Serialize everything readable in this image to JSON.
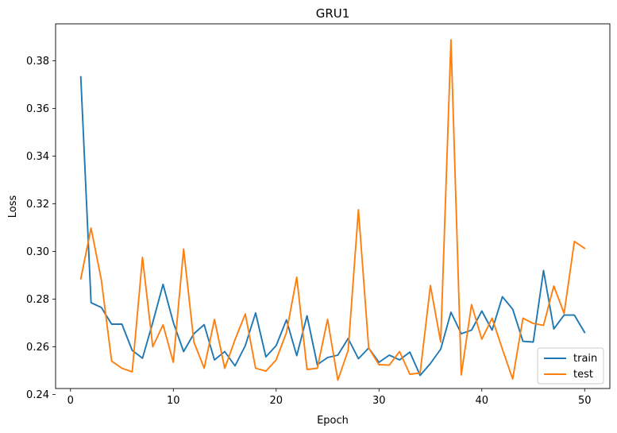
{
  "chart_data": {
    "type": "line",
    "title": "GRU1",
    "xlabel": "Epoch",
    "ylabel": "Loss",
    "xlim": [
      -1.45,
      52.45
    ],
    "ylim": [
      0.2425,
      0.3955
    ],
    "xticks": [
      0,
      10,
      20,
      30,
      40,
      50
    ],
    "yticks": [
      0.24,
      0.26,
      0.28,
      0.3,
      0.32,
      0.34,
      0.36,
      0.38
    ],
    "ytick_labels": [
      "0.24",
      "0.26",
      "0.28",
      "0.30",
      "0.32",
      "0.34",
      "0.36",
      "0.38"
    ],
    "grid": false,
    "legend_position": "lower-right",
    "x": [
      1,
      2,
      3,
      4,
      5,
      6,
      7,
      8,
      9,
      10,
      11,
      12,
      13,
      14,
      15,
      16,
      17,
      18,
      19,
      20,
      21,
      22,
      23,
      24,
      25,
      26,
      27,
      28,
      29,
      30,
      31,
      32,
      33,
      34,
      35,
      36,
      37,
      38,
      39,
      40,
      41,
      42,
      43,
      44,
      45,
      46,
      47,
      48,
      49,
      50
    ],
    "series": [
      {
        "name": "train",
        "color": "#1f77b4",
        "values": [
          0.3733,
          0.2785,
          0.2765,
          0.2695,
          0.2695,
          0.2585,
          0.2552,
          0.2702,
          0.2862,
          0.2702,
          0.258,
          0.2655,
          0.2693,
          0.2545,
          0.258,
          0.252,
          0.2605,
          0.2742,
          0.2558,
          0.2605,
          0.2713,
          0.2563,
          0.273,
          0.2525,
          0.2555,
          0.2565,
          0.2635,
          0.255,
          0.2595,
          0.2535,
          0.2565,
          0.2545,
          0.2578,
          0.248,
          0.253,
          0.259,
          0.2745,
          0.2655,
          0.267,
          0.275,
          0.267,
          0.281,
          0.2758,
          0.2623,
          0.262,
          0.292,
          0.2675,
          0.2733,
          0.2733,
          0.266
        ]
      },
      {
        "name": "test",
        "color": "#ff7f0e",
        "values": [
          0.2885,
          0.3098,
          0.288,
          0.254,
          0.251,
          0.2495,
          0.2975,
          0.26,
          0.2692,
          0.2535,
          0.301,
          0.262,
          0.251,
          0.2715,
          0.251,
          0.263,
          0.2738,
          0.251,
          0.2498,
          0.2545,
          0.266,
          0.2892,
          0.2505,
          0.251,
          0.2715,
          0.246,
          0.2585,
          0.3175,
          0.2595,
          0.2525,
          0.2523,
          0.258,
          0.2485,
          0.249,
          0.2857,
          0.262,
          0.3888,
          0.2482,
          0.2777,
          0.2632,
          0.272,
          0.259,
          0.2465,
          0.272,
          0.2698,
          0.269,
          0.2855,
          0.274,
          0.3042,
          0.3013
        ]
      }
    ]
  }
}
